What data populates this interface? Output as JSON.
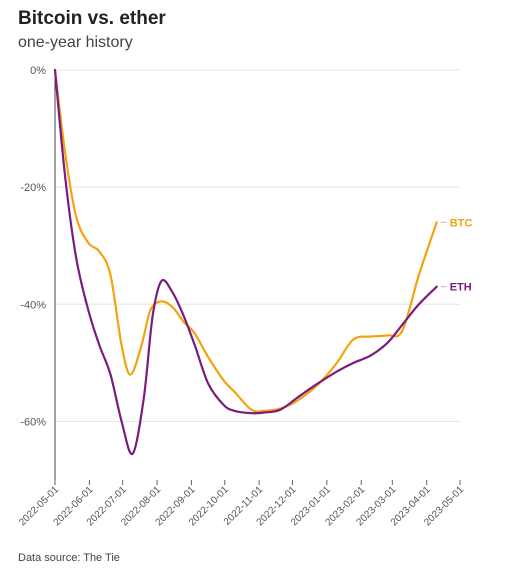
{
  "header": {
    "title": "Bitcoin vs. ether",
    "subtitle": "one-year history"
  },
  "footer": {
    "source": "Data source: The Tie"
  },
  "chart_data": {
    "type": "line",
    "title": "Bitcoin vs. ether",
    "subtitle": "one-year history",
    "xlabel": "",
    "ylabel": "",
    "ylim": [
      -70,
      0
    ],
    "yticks": [
      0,
      -20,
      -40,
      -60
    ],
    "ytick_labels": [
      "0%",
      "-20%",
      "-40%",
      "-60%"
    ],
    "xticks": [
      "2022-05-01",
      "2022-06-01",
      "2022-07-01",
      "2022-08-01",
      "2022-09-01",
      "2022-10-01",
      "2022-11-01",
      "2022-12-01",
      "2023-01-01",
      "2023-02-01",
      "2023-03-01",
      "2023-04-01",
      "2023-05-01"
    ],
    "xlim": [
      "2022-05-01",
      "2023-05-01"
    ],
    "grid": "horizontal",
    "legend": "direct labels at line ends",
    "series": [
      {
        "name": "BTC",
        "color": "#F5A20F",
        "points": [
          [
            "2022-05-01",
            0
          ],
          [
            "2022-05-10",
            -14
          ],
          [
            "2022-05-20",
            -25
          ],
          [
            "2022-05-31",
            -29.5
          ],
          [
            "2022-06-10",
            -31
          ],
          [
            "2022-06-20",
            -35
          ],
          [
            "2022-06-30",
            -47
          ],
          [
            "2022-07-08",
            -52
          ],
          [
            "2022-07-18",
            -47
          ],
          [
            "2022-07-26",
            -41
          ],
          [
            "2022-08-05",
            -39.5
          ],
          [
            "2022-08-15",
            -40.5
          ],
          [
            "2022-08-25",
            -43
          ],
          [
            "2022-09-04",
            -45
          ],
          [
            "2022-09-16",
            -49
          ],
          [
            "2022-09-30",
            -53
          ],
          [
            "2022-10-10",
            -55
          ],
          [
            "2022-10-25",
            -58
          ],
          [
            "2022-11-05",
            -58.2
          ],
          [
            "2022-11-20",
            -57.8
          ],
          [
            "2022-12-05",
            -56.5
          ],
          [
            "2022-12-25",
            -53.5
          ],
          [
            "2023-01-10",
            -50
          ],
          [
            "2023-01-25",
            -46
          ],
          [
            "2023-02-10",
            -45.5
          ],
          [
            "2023-02-25",
            -45.3
          ],
          [
            "2023-03-10",
            -44.5
          ],
          [
            "2023-03-25",
            -35
          ],
          [
            "2023-04-10",
            -26
          ]
        ]
      },
      {
        "name": "ETH",
        "color": "#7A1C7E",
        "points": [
          [
            "2022-05-01",
            0
          ],
          [
            "2022-05-10",
            -18
          ],
          [
            "2022-05-20",
            -32
          ],
          [
            "2022-05-31",
            -41
          ],
          [
            "2022-06-10",
            -47
          ],
          [
            "2022-06-20",
            -52
          ],
          [
            "2022-06-30",
            -60
          ],
          [
            "2022-07-10",
            -65.5
          ],
          [
            "2022-07-20",
            -56
          ],
          [
            "2022-07-28",
            -42
          ],
          [
            "2022-08-05",
            -36
          ],
          [
            "2022-08-15",
            -38
          ],
          [
            "2022-08-25",
            -42
          ],
          [
            "2022-09-04",
            -47
          ],
          [
            "2022-09-16",
            -53.5
          ],
          [
            "2022-09-30",
            -57.2
          ],
          [
            "2022-10-10",
            -58.2
          ],
          [
            "2022-10-25",
            -58.6
          ],
          [
            "2022-11-05",
            -58.5
          ],
          [
            "2022-11-20",
            -58
          ],
          [
            "2022-12-05",
            -56
          ],
          [
            "2022-12-20",
            -54
          ],
          [
            "2023-01-10",
            -51.5
          ],
          [
            "2023-01-25",
            -50
          ],
          [
            "2023-02-10",
            -48.7
          ],
          [
            "2023-02-25",
            -46.5
          ],
          [
            "2023-03-10",
            -43.5
          ],
          [
            "2023-03-25",
            -40
          ],
          [
            "2023-04-10",
            -37
          ]
        ]
      }
    ]
  }
}
